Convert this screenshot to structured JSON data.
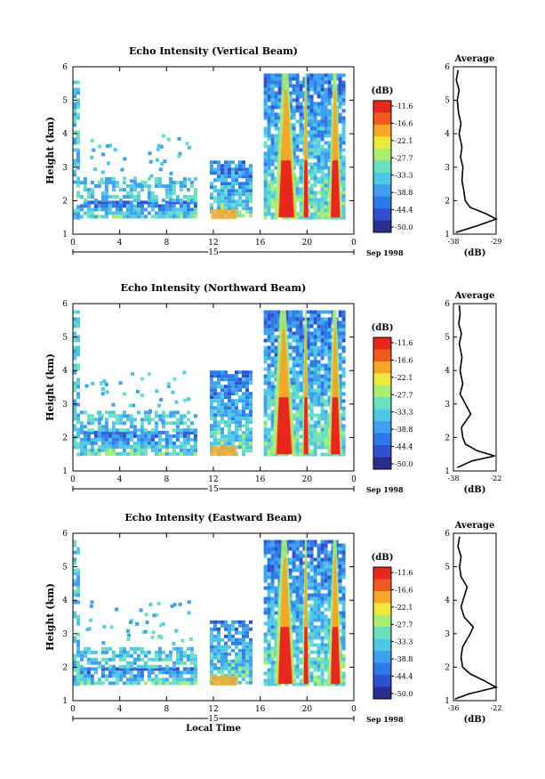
{
  "chart_data": [
    {
      "type": "heatmap",
      "title": "Echo Intensity (Vertical Beam)",
      "ylabel": "Height (km)",
      "xlabel": "",
      "x_ticks": [
        "0",
        "4",
        "8",
        "12",
        "16",
        "20",
        "0"
      ],
      "y_ticks": [
        "1",
        "2",
        "3",
        "4",
        "5",
        "6"
      ],
      "xlim": [
        0,
        24
      ],
      "ylim": [
        1,
        6
      ],
      "day_label": "15",
      "date_label": "Sep 1998",
      "colorbar": {
        "unit": "(dB)",
        "ticks": [
          "-11.6",
          "-16.6",
          "-22.1",
          "-27.7",
          "-33.3",
          "-38.8",
          "-44.4",
          "-50.0"
        ]
      },
      "gaps_hours": [
        [
          10.5,
          11.7
        ],
        [
          15.2,
          16.3
        ],
        [
          23.2,
          24
        ]
      ],
      "columns": [
        {
          "x": [
            0,
            0.6
          ],
          "ymin": 1.5,
          "ymax": 5.8,
          "v": "low"
        },
        {
          "x": [
            0.6,
            10.5
          ],
          "ymin": 1.5,
          "ymax": 2.0,
          "v": "mid"
        },
        {
          "x": [
            0.6,
            10.5
          ],
          "ymin": 2.0,
          "ymax": 2.7,
          "v": "low"
        },
        {
          "x": [
            11.7,
            15.2
          ],
          "ymin": 1.5,
          "ymax": 3.2,
          "v": "mid"
        },
        {
          "x": [
            16.3,
            23.2
          ],
          "ymin": 1.5,
          "ymax": 5.8,
          "v": "mid"
        }
      ],
      "fall_streaks": [
        {
          "x": [
            17.2,
            19.2
          ]
        },
        {
          "x": [
            19.6,
            20.2
          ]
        },
        {
          "x": [
            21.8,
            23.0
          ]
        }
      ],
      "average_profile": {
        "title": "Average",
        "xlabel": "(dB)",
        "x_ticks": [
          "-38",
          "-29"
        ],
        "xlim": [
          -38,
          -29
        ],
        "ylim": [
          1,
          6
        ],
        "height": [
          1.05,
          1.25,
          1.45,
          1.6,
          1.8,
          2.0,
          2.3,
          2.6,
          3.0,
          3.3,
          3.6,
          4.0,
          4.3,
          4.6,
          5.0,
          5.3,
          5.6,
          5.9
        ],
        "db": [
          -37.5,
          -33.0,
          -29.0,
          -31.0,
          -34.5,
          -35.5,
          -35.8,
          -36.2,
          -36.0,
          -36.5,
          -36.2,
          -36.8,
          -36.4,
          -36.9,
          -37.2,
          -36.8,
          -37.4,
          -37.0
        ]
      }
    },
    {
      "type": "heatmap",
      "title": "Echo Intensity (Northward Beam)",
      "ylabel": "Height (km)",
      "xlabel": "",
      "x_ticks": [
        "0",
        "4",
        "8",
        "12",
        "16",
        "20",
        "0"
      ],
      "y_ticks": [
        "1",
        "2",
        "3",
        "4",
        "5",
        "6"
      ],
      "xlim": [
        0,
        24
      ],
      "ylim": [
        1,
        6
      ],
      "day_label": "15",
      "date_label": "Sep 1998",
      "colorbar": {
        "unit": "(dB)",
        "ticks": [
          "-11.6",
          "-16.6",
          "-22.1",
          "-27.7",
          "-33.3",
          "-38.8",
          "-44.4",
          "-50.0"
        ]
      },
      "gaps_hours": [
        [
          10.5,
          11.7
        ],
        [
          15.2,
          16.3
        ],
        [
          23.2,
          24
        ]
      ],
      "columns": [
        {
          "x": [
            0,
            0.6
          ],
          "ymin": 1.5,
          "ymax": 5.8,
          "v": "low"
        },
        {
          "x": [
            0.6,
            10.5
          ],
          "ymin": 1.5,
          "ymax": 2.2,
          "v": "mid"
        },
        {
          "x": [
            0.6,
            10.5
          ],
          "ymin": 2.2,
          "ymax": 2.8,
          "v": "low"
        },
        {
          "x": [
            11.7,
            15.2
          ],
          "ymin": 1.5,
          "ymax": 4.0,
          "v": "mid"
        },
        {
          "x": [
            16.3,
            23.2
          ],
          "ymin": 1.5,
          "ymax": 5.8,
          "v": "mid"
        }
      ],
      "fall_streaks": [
        {
          "x": [
            17.0,
            19.0
          ]
        },
        {
          "x": [
            19.6,
            20.2
          ]
        },
        {
          "x": [
            21.8,
            23.0
          ]
        }
      ],
      "average_profile": {
        "title": "Average",
        "xlabel": "(dB)",
        "x_ticks": [
          "-38",
          "-22"
        ],
        "xlim": [
          -38,
          -22
        ],
        "ylim": [
          1,
          6
        ],
        "height": [
          1.1,
          1.3,
          1.45,
          1.6,
          1.8,
          2.0,
          2.3,
          2.7,
          3.0,
          3.3,
          3.6,
          4.0,
          4.4,
          4.8,
          5.1,
          5.4,
          5.7,
          5.95
        ],
        "db": [
          -36.5,
          -31.0,
          -22.5,
          -29.0,
          -33.5,
          -34.5,
          -35.0,
          -31.5,
          -33.5,
          -35.5,
          -34.5,
          -35.5,
          -34.8,
          -35.8,
          -35.0,
          -36.0,
          -35.5,
          -35.8
        ]
      }
    },
    {
      "type": "heatmap",
      "title": "Echo Intensity (Eastward Beam)",
      "ylabel": "Height (km)",
      "xlabel": "Local Time",
      "x_ticks": [
        "0",
        "4",
        "8",
        "12",
        "16",
        "20",
        "0"
      ],
      "y_ticks": [
        "1",
        "2",
        "3",
        "4",
        "5",
        "6"
      ],
      "xlim": [
        0,
        24
      ],
      "ylim": [
        1,
        6
      ],
      "day_label": "15",
      "date_label": "Sep 1998",
      "colorbar": {
        "unit": "(dB)",
        "ticks": [
          "-11.6",
          "-16.6",
          "-22.1",
          "-27.7",
          "-33.3",
          "-38.8",
          "-44.4",
          "-50.0"
        ]
      },
      "gaps_hours": [
        [
          10.5,
          11.7
        ],
        [
          15.2,
          16.3
        ],
        [
          23.2,
          24
        ]
      ],
      "columns": [
        {
          "x": [
            0,
            0.6
          ],
          "ymin": 1.5,
          "ymax": 5.8,
          "v": "low"
        },
        {
          "x": [
            0.6,
            10.5
          ],
          "ymin": 1.5,
          "ymax": 2.0,
          "v": "mid"
        },
        {
          "x": [
            0.6,
            10.5
          ],
          "ymin": 2.0,
          "ymax": 2.6,
          "v": "low"
        },
        {
          "x": [
            11.7,
            15.2
          ],
          "ymin": 1.5,
          "ymax": 3.4,
          "v": "mid"
        },
        {
          "x": [
            16.3,
            23.2
          ],
          "ymin": 1.5,
          "ymax": 5.8,
          "v": "mid"
        }
      ],
      "fall_streaks": [
        {
          "x": [
            17.2,
            19.0
          ]
        },
        {
          "x": [
            19.6,
            20.2
          ]
        },
        {
          "x": [
            21.8,
            23.0
          ]
        }
      ],
      "average_profile": {
        "title": "Average",
        "xlabel": "(dB)",
        "x_ticks": [
          "-36",
          "-22"
        ],
        "xlim": [
          -36,
          -22
        ],
        "ylim": [
          1,
          6
        ],
        "height": [
          1.05,
          1.2,
          1.4,
          1.6,
          1.8,
          2.0,
          2.3,
          2.6,
          3.0,
          3.2,
          3.5,
          3.8,
          4.1,
          4.4,
          4.7,
          5.0,
          5.3,
          5.6,
          5.9
        ],
        "db": [
          -35.5,
          -31.0,
          -22.0,
          -26.0,
          -30.5,
          -33.0,
          -33.5,
          -33.0,
          -30.5,
          -29.5,
          -32.5,
          -33.5,
          -32.5,
          -31.5,
          -33.5,
          -34.0,
          -33.5,
          -34.5,
          -34.0
        ]
      }
    }
  ],
  "colors": {
    "scale": [
      "#2a2f8f",
      "#2f50d0",
      "#2e79e8",
      "#3fa0f0",
      "#4fc8e8",
      "#6ae0c0",
      "#a8ee70",
      "#f0e83a",
      "#f7a628",
      "#f05a1e",
      "#e8281e"
    ]
  }
}
